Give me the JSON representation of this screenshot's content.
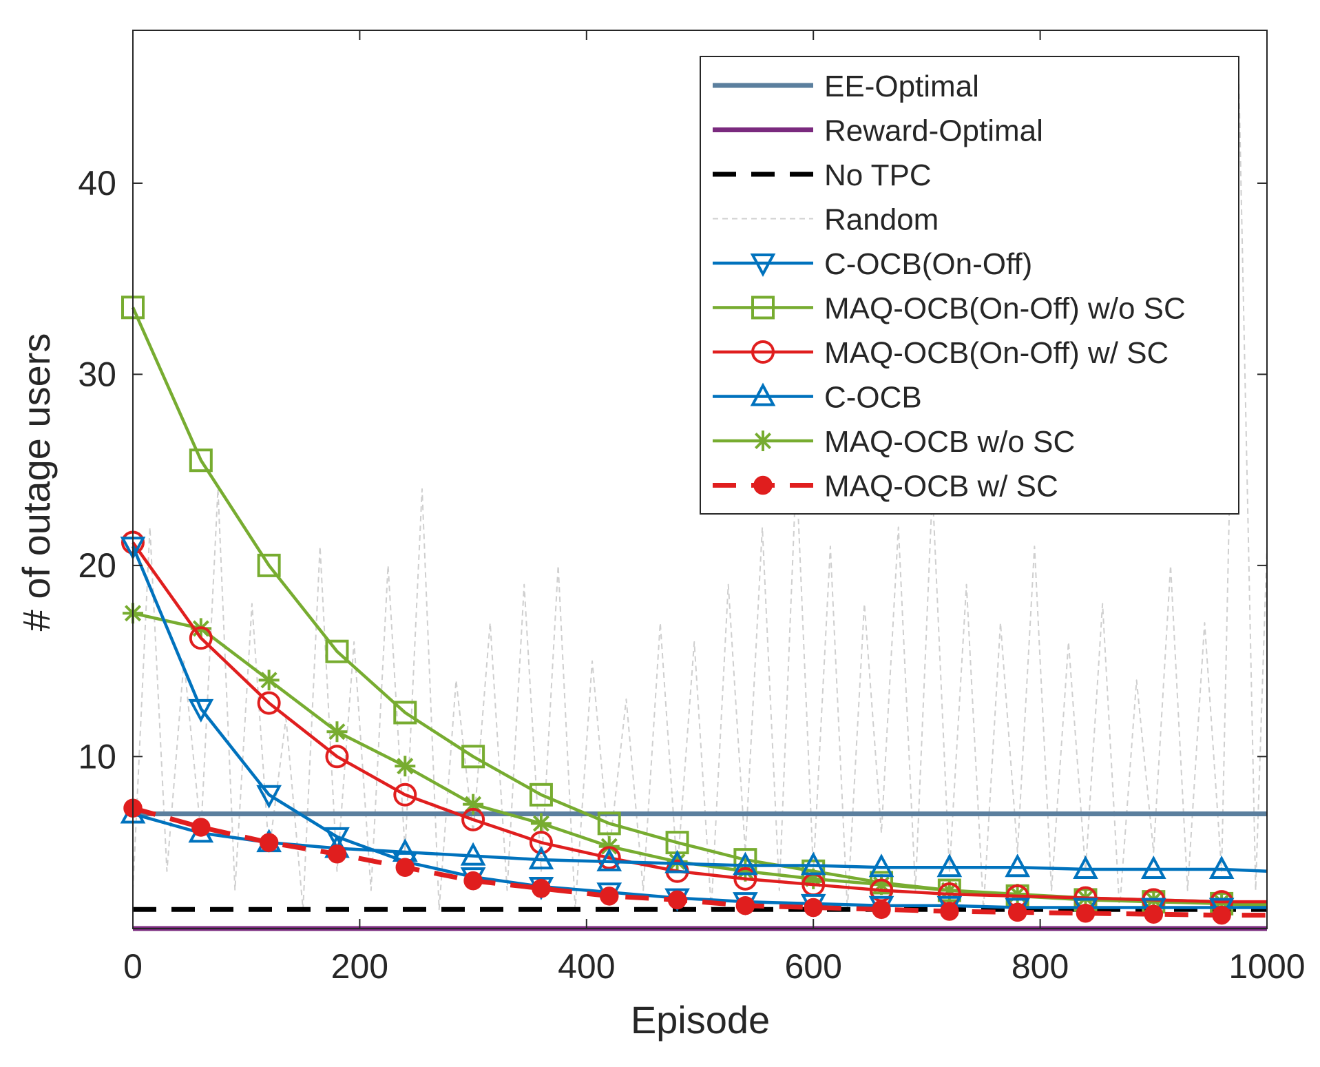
{
  "chart_data": {
    "type": "line",
    "title": "",
    "xlabel": "Episode",
    "ylabel": "# of outage users",
    "xlim": [
      0,
      1000
    ],
    "ylim": [
      1,
      48
    ],
    "xticks": [
      0,
      200,
      400,
      600,
      800,
      1000
    ],
    "yticks": [
      10,
      20,
      30,
      40
    ],
    "grid": false,
    "legend_position": "top-right",
    "series": [
      {
        "name": "EE-Optimal",
        "color": "#5b7f9e",
        "style": "solid",
        "marker": "none",
        "x": [
          0,
          1000
        ],
        "y": [
          7.0,
          7.0
        ]
      },
      {
        "name": "Reward-Optimal",
        "color": "#7a2a7e",
        "style": "solid",
        "marker": "none",
        "x": [
          0,
          1000
        ],
        "y": [
          1.0,
          1.0
        ]
      },
      {
        "name": "No TPC",
        "color": "#000000",
        "style": "dashed",
        "marker": "none",
        "x": [
          0,
          1000
        ],
        "y": [
          2.0,
          2.0
        ]
      },
      {
        "name": "Random",
        "color": "#cfcfcf",
        "style": "dashed-thin",
        "marker": "none",
        "x": [
          0,
          15,
          30,
          45,
          60,
          75,
          90,
          105,
          120,
          135,
          150,
          165,
          180,
          195,
          210,
          225,
          240,
          255,
          270,
          285,
          300,
          315,
          330,
          345,
          360,
          375,
          390,
          405,
          420,
          435,
          450,
          465,
          480,
          495,
          510,
          525,
          540,
          555,
          570,
          585,
          600,
          615,
          630,
          645,
          660,
          675,
          690,
          705,
          720,
          735,
          750,
          765,
          780,
          795,
          810,
          825,
          840,
          855,
          870,
          885,
          900,
          915,
          930,
          945,
          960,
          975,
          990,
          1000
        ],
        "y": [
          3,
          22,
          4,
          15,
          6,
          24,
          3,
          18,
          5,
          12,
          2,
          21,
          4,
          16,
          3,
          20,
          5,
          24,
          2,
          14,
          6,
          17,
          3,
          19,
          4,
          20,
          2,
          15,
          5,
          13,
          3,
          17,
          4,
          16,
          2,
          19,
          5,
          22,
          3,
          25,
          4,
          21,
          2,
          18,
          6,
          22,
          3,
          24,
          4,
          19,
          2,
          17,
          5,
          21,
          3,
          16,
          4,
          18,
          2,
          14,
          5,
          20,
          3,
          17,
          4,
          46,
          3,
          21
        ]
      },
      {
        "name": "C-OCB(On-Off)",
        "color": "#0072bd",
        "style": "solid",
        "marker": "triangle-down",
        "x": [
          0,
          60,
          120,
          180,
          240,
          300,
          360,
          420,
          480,
          540,
          600,
          660,
          720,
          780,
          840,
          900,
          960,
          1000
        ],
        "y": [
          21.0,
          12.5,
          8.0,
          5.8,
          4.5,
          3.7,
          3.2,
          2.9,
          2.6,
          2.4,
          2.3,
          2.2,
          2.2,
          2.1,
          2.1,
          2.1,
          2.1,
          2.1
        ]
      },
      {
        "name": "MAQ-OCB(On-Off) w/o SC",
        "color": "#77ac30",
        "style": "solid",
        "marker": "square",
        "x": [
          0,
          60,
          120,
          180,
          240,
          300,
          360,
          420,
          480,
          540,
          600,
          660,
          720,
          780,
          840,
          900,
          960,
          1000
        ],
        "y": [
          33.5,
          25.5,
          20.0,
          15.5,
          12.3,
          10.0,
          8.0,
          6.5,
          5.5,
          4.6,
          4.0,
          3.4,
          3.0,
          2.7,
          2.5,
          2.4,
          2.3,
          2.2
        ]
      },
      {
        "name": "MAQ-OCB(On-Off) w/ SC",
        "color": "#e01e1e",
        "style": "solid",
        "marker": "circle",
        "x": [
          0,
          60,
          120,
          180,
          240,
          300,
          360,
          420,
          480,
          540,
          600,
          660,
          720,
          780,
          840,
          900,
          960,
          1000
        ],
        "y": [
          21.2,
          16.2,
          12.8,
          10.0,
          8.0,
          6.7,
          5.5,
          4.7,
          4.0,
          3.6,
          3.3,
          3.0,
          2.8,
          2.7,
          2.6,
          2.5,
          2.4,
          2.4
        ]
      },
      {
        "name": "C-OCB",
        "color": "#0072bd",
        "style": "solid",
        "marker": "triangle-up",
        "x": [
          0,
          60,
          120,
          180,
          240,
          300,
          360,
          420,
          480,
          540,
          600,
          660,
          720,
          780,
          840,
          900,
          960,
          1000
        ],
        "y": [
          7.0,
          6.0,
          5.5,
          5.2,
          5.0,
          4.8,
          4.6,
          4.5,
          4.4,
          4.3,
          4.3,
          4.2,
          4.2,
          4.2,
          4.1,
          4.1,
          4.1,
          4.0
        ]
      },
      {
        "name": "MAQ-OCB w/o SC",
        "color": "#77ac30",
        "style": "solid",
        "marker": "asterisk",
        "x": [
          0,
          60,
          120,
          180,
          240,
          300,
          360,
          420,
          480,
          540,
          600,
          660,
          720,
          780,
          840,
          900,
          960,
          1000
        ],
        "y": [
          17.5,
          16.7,
          14.0,
          11.3,
          9.5,
          7.5,
          6.5,
          5.3,
          4.5,
          4.0,
          3.6,
          3.3,
          3.0,
          2.8,
          2.6,
          2.5,
          2.4,
          2.3
        ]
      },
      {
        "name": "MAQ-OCB w/ SC",
        "color": "#e01e1e",
        "style": "dashed",
        "marker": "filled-circle",
        "x": [
          0,
          60,
          120,
          180,
          240,
          300,
          360,
          420,
          480,
          540,
          600,
          660,
          720,
          780,
          840,
          900,
          960,
          1000
        ],
        "y": [
          7.3,
          6.3,
          5.5,
          4.9,
          4.2,
          3.5,
          3.1,
          2.7,
          2.5,
          2.2,
          2.1,
          2.0,
          1.9,
          1.85,
          1.8,
          1.75,
          1.7,
          1.7
        ]
      }
    ]
  }
}
